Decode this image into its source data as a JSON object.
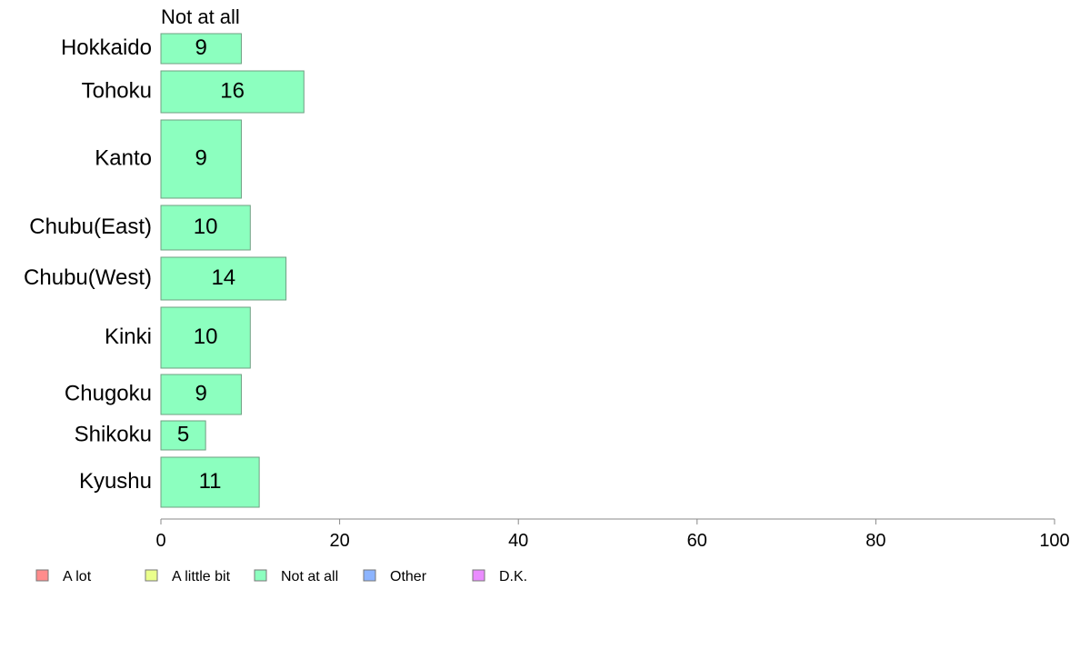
{
  "chart_data": {
    "type": "bar",
    "orientation": "horizontal",
    "series_title": "Not at all",
    "categories": [
      "Hokkaido",
      "Tohoku",
      "Kanto",
      "Chubu(East)",
      "Chubu(West)",
      "Kinki",
      "Chugoku",
      "Shikoku",
      "Kyushu"
    ],
    "series": [
      {
        "name": "Not at all",
        "values": [
          9,
          16,
          9,
          10,
          14,
          10,
          9,
          5,
          11
        ],
        "data_labels": [
          "9",
          "16",
          "9",
          "10",
          "14",
          "10",
          "9",
          "5",
          "11"
        ],
        "color": "#8cffbf"
      }
    ],
    "xlim": [
      0,
      100
    ],
    "x_ticks": [
      0,
      20,
      40,
      60,
      80,
      100
    ],
    "x_tick_labels": [
      "0",
      "20",
      "40",
      "60",
      "80",
      "100"
    ],
    "grid": false,
    "legend_position": "bottom-left",
    "legend": [
      {
        "label": "A lot",
        "color": "#ff8c8c"
      },
      {
        "label": "A little bit",
        "color": "#eaff8c"
      },
      {
        "label": "Not at all",
        "color": "#8cffbf"
      },
      {
        "label": "Other",
        "color": "#8cb4ff"
      },
      {
        "label": "D.K.",
        "color": "#ea8cff"
      }
    ]
  }
}
